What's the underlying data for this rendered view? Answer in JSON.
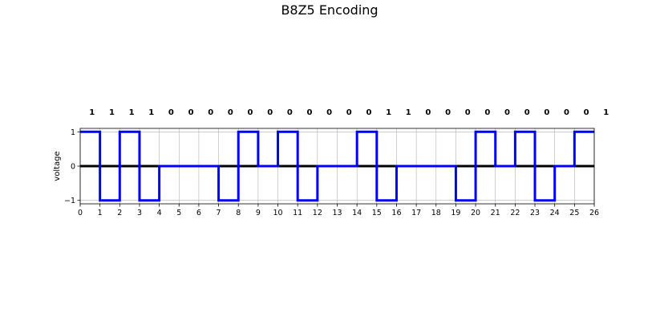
{
  "chart_data": {
    "type": "line",
    "title": "B8Z5 Encoding",
    "xlabel": "",
    "ylabel": "voltage",
    "xlim": [
      0,
      26
    ],
    "ylim": [
      -1.1,
      1.1
    ],
    "xticks": [
      "0",
      "1",
      "2",
      "3",
      "4",
      "5",
      "6",
      "7",
      "8",
      "9",
      "10",
      "11",
      "12",
      "13",
      "14",
      "15",
      "16",
      "17",
      "18",
      "19",
      "20",
      "21",
      "22",
      "23",
      "24",
      "25",
      "26"
    ],
    "yticks": [
      "1",
      "0",
      "−1"
    ],
    "ytick_values": [
      1,
      0,
      -1
    ],
    "grid": true,
    "bits": [
      "1",
      "1",
      "1",
      "1",
      "0",
      "0",
      "0",
      "0",
      "0",
      "0",
      "0",
      "0",
      "0",
      "0",
      "0",
      "1",
      "1",
      "0",
      "0",
      "0",
      "0",
      "0",
      "0",
      "0",
      "0",
      "0",
      "1"
    ],
    "series": [
      {
        "values": [
          1,
          -1,
          1,
          -1,
          0,
          0,
          0,
          -1,
          1,
          0,
          1,
          -1,
          0,
          0,
          1,
          -1,
          0,
          0,
          0,
          -1,
          1,
          0,
          1,
          -1,
          0,
          1
        ]
      }
    ],
    "colors": {
      "signal": "#0000ff",
      "baseline": "#000000",
      "grid": "#b0b0b0"
    }
  }
}
